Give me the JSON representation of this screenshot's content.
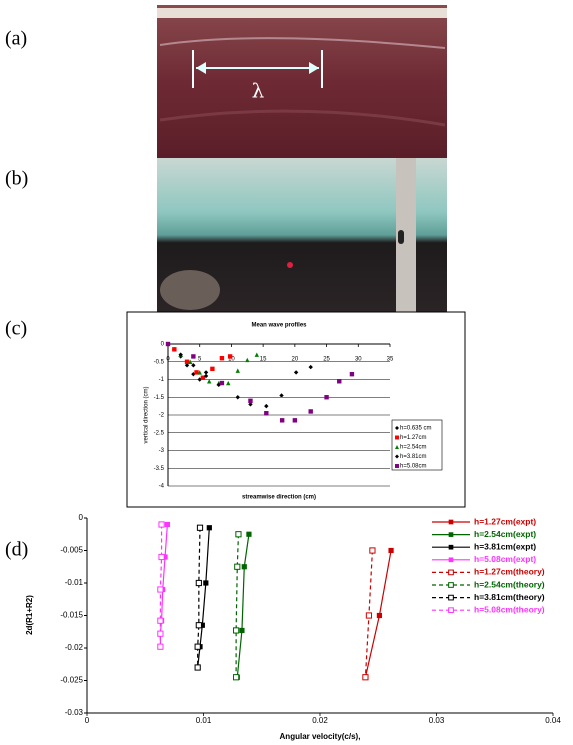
{
  "panel_labels": [
    "(a)",
    "(b)",
    "(c)",
    "(d)"
  ],
  "photo_a_annotation": "λ",
  "chart_data": [
    {
      "type": "scatter",
      "title": "Mean wave profiles",
      "x_label": "streamwise direction (cm)",
      "y_label": "vertical direction (cm)",
      "xlim": [
        0,
        35
      ],
      "xticks": [
        0,
        5,
        10,
        15,
        20,
        25,
        30,
        35
      ],
      "ylim": [
        -4,
        0
      ],
      "yticks": [
        0,
        -0.5,
        -1,
        -1.5,
        -2,
        -2.5,
        -3,
        -3.5,
        -4
      ],
      "grid": true,
      "series": [
        {
          "name": "h=0.635 cm",
          "color": "#000000",
          "marker": "diamond",
          "x": [
            1,
            2,
            3,
            4,
            5,
            6
          ],
          "values": [
            -0.15,
            -0.35,
            -0.6,
            -0.85,
            -1.0,
            -0.8
          ]
        },
        {
          "name": "h=1.27cm",
          "color": "#ff0000",
          "marker": "square",
          "x": [
            1,
            3,
            4.5,
            5.5,
            7,
            8.5,
            9.8
          ],
          "values": [
            -0.15,
            -0.5,
            -0.8,
            -0.95,
            -0.7,
            -0.4,
            -0.35
          ]
        },
        {
          "name": "h=2.54cm",
          "color": "#008000",
          "marker": "triangle",
          "x": [
            2,
            3.5,
            5,
            6.5,
            8,
            9.5,
            11,
            12.5,
            14
          ],
          "values": [
            -0.3,
            -0.5,
            -0.8,
            -1.05,
            -1.1,
            -1.1,
            -0.75,
            -0.45,
            -0.3
          ]
        },
        {
          "name": "h=3.81cm",
          "color": "#000000",
          "marker": "diamond",
          "x": [
            2,
            4,
            6,
            8,
            11,
            13,
            15.5,
            17.9,
            20.2,
            22.5
          ],
          "values": [
            -0.3,
            -0.6,
            -0.9,
            -1.15,
            -1.5,
            -1.7,
            -1.75,
            -1.45,
            -0.8,
            -0.65
          ]
        },
        {
          "name": "h=5.08cm",
          "color": "#800080",
          "marker": "square",
          "x": [
            0,
            4,
            8.5,
            13,
            15.5,
            18,
            20,
            22.5,
            25,
            27,
            29
          ],
          "values": [
            0,
            -0.35,
            -1.1,
            -1.6,
            -1.95,
            -2.15,
            -2.15,
            -1.9,
            -1.5,
            -1.05,
            -0.85
          ]
        }
      ]
    },
    {
      "type": "line",
      "x_label": "Angular velocity(c/s),",
      "y_label": "2d(R1+R2)",
      "xlim": [
        0,
        0.04
      ],
      "xticks": [
        0,
        0.01,
        0.02,
        0.03,
        0.04
      ],
      "ylim": [
        -0.03,
        0
      ],
      "yticks": [
        0,
        -0.005,
        -0.01,
        -0.015,
        -0.02,
        -0.025,
        -0.03
      ],
      "grid": false,
      "series": [
        {
          "name": "h=1.27cm(expt)",
          "color": "#cc0000",
          "linestyle": "solid",
          "marker": "square",
          "x": [
            0.0261,
            0.0251,
            0.0239
          ],
          "values": [
            -0.005,
            -0.015,
            -0.0245
          ]
        },
        {
          "name": "h=2.54cm(expt)",
          "color": "#006400",
          "linestyle": "solid",
          "marker": "square",
          "x": [
            0.0139,
            0.0135,
            0.0133,
            0.0129
          ],
          "values": [
            -0.0025,
            -0.0075,
            -0.0173,
            -0.0245
          ]
        },
        {
          "name": "h=3.81cm(expt)",
          "color": "#000000",
          "linestyle": "solid",
          "marker": "square",
          "x": [
            0.0105,
            0.0102,
            0.0099,
            0.0097,
            0.0095
          ],
          "values": [
            -0.0015,
            -0.01,
            -0.0165,
            -0.0198,
            -0.023
          ]
        },
        {
          "name": "h=5.08cm(expt)",
          "color": "#ff33ff",
          "linestyle": "solid",
          "marker": "square",
          "x": [
            0.0069,
            0.0067,
            0.0065,
            0.0064,
            0.0063,
            0.0063
          ],
          "values": [
            -0.001,
            -0.006,
            -0.011,
            -0.0158,
            -0.0178,
            -0.0198
          ]
        },
        {
          "name": "h=1.27cm(theory)",
          "color": "#cc0000",
          "linestyle": "dashed",
          "marker": "open-square",
          "x": [
            0.0245,
            0.0242,
            0.0239
          ],
          "values": [
            -0.005,
            -0.015,
            -0.0245
          ]
        },
        {
          "name": "h=2.54cm(theory)",
          "color": "#006400",
          "linestyle": "dashed",
          "marker": "open-square",
          "x": [
            0.013,
            0.0129,
            0.0128,
            0.0128
          ],
          "values": [
            -0.0025,
            -0.0075,
            -0.0173,
            -0.0245
          ]
        },
        {
          "name": "h=3.81cm(theory)",
          "color": "#000000",
          "linestyle": "dashed",
          "marker": "open-square",
          "x": [
            0.0097,
            0.0096,
            0.0096,
            0.0095,
            0.0095
          ],
          "values": [
            -0.0015,
            -0.01,
            -0.0165,
            -0.0198,
            -0.023
          ]
        },
        {
          "name": "h=5.08cm(theory)",
          "color": "#ff33ff",
          "linestyle": "dashed",
          "marker": "open-square",
          "x": [
            0.0064,
            0.0064,
            0.0063,
            0.0063,
            0.0063,
            0.0063
          ],
          "values": [
            -0.001,
            -0.006,
            -0.011,
            -0.0158,
            -0.0178,
            -0.0198
          ]
        }
      ]
    }
  ]
}
